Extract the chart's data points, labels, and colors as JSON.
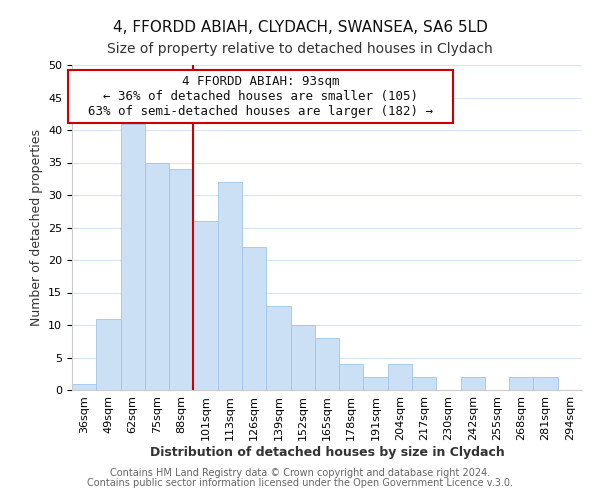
{
  "title": "4, FFORDD ABIAH, CLYDACH, SWANSEA, SA6 5LD",
  "subtitle": "Size of property relative to detached houses in Clydach",
  "xlabel": "Distribution of detached houses by size in Clydach",
  "ylabel": "Number of detached properties",
  "bar_labels": [
    "36sqm",
    "49sqm",
    "62sqm",
    "75sqm",
    "88sqm",
    "101sqm",
    "113sqm",
    "126sqm",
    "139sqm",
    "152sqm",
    "165sqm",
    "178sqm",
    "191sqm",
    "204sqm",
    "217sqm",
    "230sqm",
    "242sqm",
    "255sqm",
    "268sqm",
    "281sqm",
    "294sqm"
  ],
  "bar_values": [
    1,
    11,
    41,
    35,
    34,
    26,
    32,
    22,
    13,
    10,
    8,
    4,
    2,
    4,
    2,
    0,
    2,
    0,
    2,
    2,
    0
  ],
  "bar_color": "#cce0f5",
  "bar_edge_color": "#a0c4e8",
  "vline_x": 4.5,
  "vline_color": "#cc0000",
  "ylim": [
    0,
    50
  ],
  "yticks": [
    0,
    5,
    10,
    15,
    20,
    25,
    30,
    35,
    40,
    45,
    50
  ],
  "annotation_title": "4 FFORDD ABIAH: 93sqm",
  "annotation_line1": "← 36% of detached houses are smaller (105)",
  "annotation_line2": "63% of semi-detached houses are larger (182) →",
  "annotation_box_color": "#ffffff",
  "annotation_box_edge": "#cc0000",
  "footer_line1": "Contains HM Land Registry data © Crown copyright and database right 2024.",
  "footer_line2": "Contains public sector information licensed under the Open Government Licence v.3.0.",
  "title_fontsize": 11,
  "subtitle_fontsize": 10,
  "axis_label_fontsize": 9,
  "tick_fontsize": 8,
  "annotation_fontsize": 9,
  "footer_fontsize": 7,
  "background_color": "#ffffff",
  "grid_color": "#d4e6f5"
}
